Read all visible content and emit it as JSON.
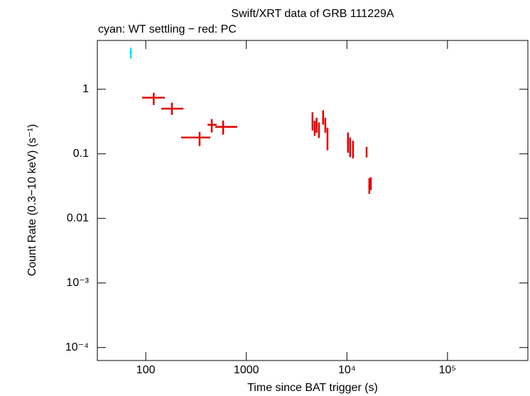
{
  "chart_data": {
    "type": "scatter",
    "title": "Swift/XRT data of GRB 111229A",
    "subtitle": "cyan: WT settling − red: PC",
    "x_label": "Time since BAT trigger (s)",
    "y_label": "Count Rate (0.3−10 keV) (s⁻¹)",
    "x_log": true,
    "y_log": true,
    "xlim": [
      33,
      630000
    ],
    "ylim": [
      6.3e-05,
      5.7
    ],
    "xticks": [
      100,
      1000,
      {
        "value": 10000,
        "label": "10⁴"
      },
      {
        "value": 100000,
        "label": "10⁵"
      }
    ],
    "yticks": [
      1,
      0.1,
      0.01,
      {
        "value": 0.001,
        "label": "10⁻³"
      },
      {
        "value": 0.0001,
        "label": "10⁻⁴"
      }
    ],
    "series": [
      {
        "name": "WT settling",
        "color": "#00e5ff",
        "x": [
          71
        ],
        "xerr": [
          [
            2,
            2
          ]
        ],
        "values": [
          3.7
        ],
        "yerr": [
          [
            0.7,
            0.7
          ]
        ]
      },
      {
        "name": "PC",
        "color": "#e00000",
        "x": [
          120,
          182,
          343,
          453,
          588,
          4550,
          4780,
          5000,
          5270,
          5800,
          6100,
          6410,
          10260,
          10770,
          11500,
          15700,
          16700,
          17300
        ],
        "xerr": [
          [
            28,
            35
          ],
          [
            39,
            55
          ],
          [
            118,
            96
          ],
          [
            42,
            55
          ],
          [
            96,
            225
          ],
          [
            90,
            90
          ],
          [
            90,
            90
          ],
          [
            90,
            90
          ],
          [
            90,
            90
          ],
          [
            100,
            100
          ],
          [
            100,
            100
          ],
          [
            100,
            100
          ],
          [
            200,
            200
          ],
          [
            200,
            200
          ],
          [
            200,
            200
          ],
          [
            250,
            250
          ],
          [
            250,
            250
          ],
          [
            250,
            250
          ]
        ],
        "values": [
          0.74,
          0.5,
          0.179,
          0.282,
          0.262,
          0.33,
          0.255,
          0.282,
          0.236,
          0.373,
          0.282,
          0.174,
          0.154,
          0.129,
          0.12,
          0.108,
          0.032,
          0.0355
        ],
        "yerr": [
          [
            0.17,
            0.14
          ],
          [
            0.1,
            0.12
          ],
          [
            0.047,
            0.04
          ],
          [
            0.068,
            0.064
          ],
          [
            0.064,
            0.066
          ],
          [
            0.1,
            0.11
          ],
          [
            0.065,
            0.07
          ],
          [
            0.07,
            0.08
          ],
          [
            0.06,
            0.07
          ],
          [
            0.09,
            0.1
          ],
          [
            0.07,
            0.08
          ],
          [
            0.06,
            0.08
          ],
          [
            0.05,
            0.06
          ],
          [
            0.04,
            0.05
          ],
          [
            0.035,
            0.04
          ],
          [
            0.02,
            0.02
          ],
          [
            0.008,
            0.01
          ],
          [
            0.008,
            0.008
          ]
        ]
      }
    ]
  }
}
